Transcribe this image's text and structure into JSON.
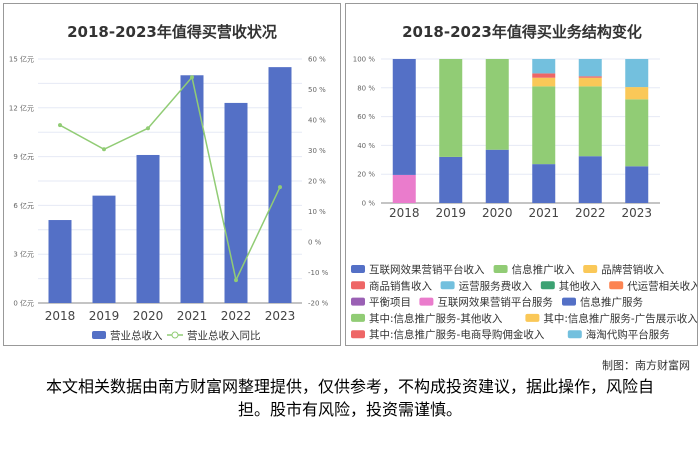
{
  "chart_data": [
    {
      "type": "bar+line",
      "title": "2018-2023年值得买营收状况",
      "categories": [
        "2018",
        "2019",
        "2020",
        "2021",
        "2022",
        "2023"
      ],
      "series": [
        {
          "name": "营业总收入",
          "type": "bar",
          "axis": "left",
          "values": [
            5.1,
            6.6,
            9.1,
            14.0,
            12.3,
            14.5
          ],
          "color": "#5470c6"
        },
        {
          "name": "营业总收入同比",
          "type": "line",
          "axis": "right",
          "values": [
            38.3,
            30.4,
            37.3,
            54.0,
            -12.5,
            18.0
          ],
          "color": "#91cc75"
        }
      ],
      "y_left": {
        "ticks": [
          "0 亿元",
          "3 亿元",
          "6 亿元",
          "9 亿元",
          "12 亿元",
          "15 亿元"
        ],
        "range": [
          0,
          15
        ]
      },
      "y_right": {
        "ticks": [
          "-20 %",
          "-10 %",
          "0 %",
          "10 %",
          "20 %",
          "30 %",
          "40 %",
          "50 %",
          "60 %"
        ],
        "range": [
          -20,
          60
        ]
      },
      "legend": "bottom",
      "grid": true
    },
    {
      "type": "stacked-bar",
      "title": "2018-2023年值得买业务结构变化",
      "categories": [
        "2018",
        "2019",
        "2020",
        "2021",
        "2022",
        "2023"
      ],
      "y_ticks": [
        "0 %",
        "20 %",
        "40 %",
        "60 %",
        "80 %",
        "100 %"
      ],
      "range": [
        0,
        100
      ],
      "series": [
        {
          "name": "互联网效果营销平台收入",
          "color": "#5470c6",
          "values": [
            0,
            32,
            37,
            27,
            32.5,
            25.5
          ]
        },
        {
          "name": "信息推广收入",
          "color": "#91cc75",
          "values": [
            0,
            68,
            63,
            54,
            48.5,
            46.5
          ]
        },
        {
          "name": "品牌营销收入",
          "color": "#fac858",
          "values": [
            0,
            0,
            0,
            6,
            6,
            8.5
          ]
        },
        {
          "name": "商品销售收入",
          "color": "#ee6666",
          "values": [
            0,
            0,
            0,
            3,
            1,
            0
          ]
        },
        {
          "name": "运营服务费收入",
          "color": "#73c0de",
          "values": [
            0,
            0,
            0,
            10,
            12,
            19.5
          ]
        },
        {
          "name": "其他收入",
          "color": "#3ba272",
          "values": [
            0,
            0,
            0,
            0,
            0,
            0
          ]
        },
        {
          "name": "代运营相关收入",
          "color": "#fc8452",
          "values": [
            0,
            0,
            0,
            0,
            0,
            0
          ]
        },
        {
          "name": "平衡项目",
          "color": "#9a60b4",
          "values": [
            0,
            0,
            0,
            0,
            0,
            0
          ]
        },
        {
          "name": "互联网效果营销平台服务",
          "color": "#ea7ccc",
          "values": [
            19.5,
            0,
            0,
            0,
            0,
            0
          ]
        },
        {
          "name": "信息推广服务",
          "color": "#5470c6",
          "values": [
            80.5,
            0,
            0,
            0,
            0,
            0
          ]
        },
        {
          "name": "其中:信息推广服务-其他收入",
          "color": "#91cc75",
          "values": [
            0,
            0,
            0,
            0,
            0,
            0
          ]
        },
        {
          "name": "其中:信息推广服务-广告展示收入",
          "color": "#fac858",
          "values": [
            0,
            0,
            0,
            0,
            0,
            0
          ]
        },
        {
          "name": "其中:信息推广服务-电商导购佣金收入",
          "color": "#ee6666",
          "values": [
            0,
            0,
            0,
            0,
            0,
            0
          ]
        },
        {
          "name": "海淘代购平台服务",
          "color": "#73c0de",
          "values": [
            0,
            0,
            0,
            0,
            0,
            0
          ]
        }
      ],
      "legend": "bottom",
      "grid": true
    }
  ],
  "credit": "制图：南方财富网",
  "note": "本文相关数据由南方财富网整理提供，仅供参考，不构成投资建议，据此操作，风险自担。股市有风险，投资需谨慎。"
}
